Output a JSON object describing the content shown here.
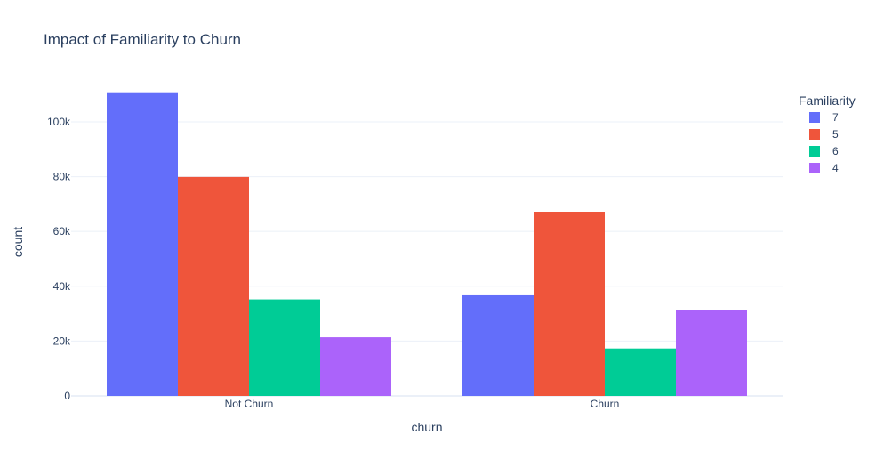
{
  "chart_data": {
    "type": "bar",
    "title": "Impact of Familiarity to Churn",
    "xlabel": "churn",
    "ylabel": "count",
    "categories": [
      "Not Churn",
      "Churn"
    ],
    "ylim": [
      0,
      112000
    ],
    "yticks": [
      0,
      20000,
      40000,
      60000,
      80000,
      100000
    ],
    "ytick_labels": [
      "0",
      "20k",
      "40k",
      "60k",
      "80k",
      "100k"
    ],
    "grid": true,
    "legend": {
      "title": "Familiarity",
      "placement": "top-right"
    },
    "series": [
      {
        "name": "7",
        "color": "#636efa",
        "values": [
          110800,
          36700
        ]
      },
      {
        "name": "5",
        "color": "#ef553b",
        "values": [
          79900,
          67200
        ]
      },
      {
        "name": "6",
        "color": "#00cc96",
        "values": [
          35200,
          17300
        ]
      },
      {
        "name": "4",
        "color": "#ab63fa",
        "values": [
          21400,
          31200
        ]
      }
    ]
  }
}
